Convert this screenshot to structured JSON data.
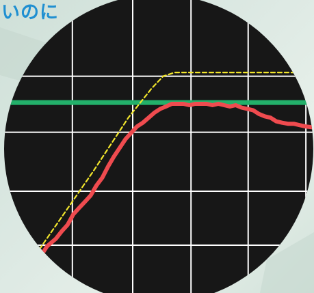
{
  "caption": "いのに",
  "colors": {
    "background": "#d8e6df",
    "panel": "#171717",
    "grid": "#ffffff",
    "caption": "#1f8fd1"
  },
  "chart_data": {
    "type": "line",
    "xlim": [
      0,
      100
    ],
    "ylim": [
      0,
      100
    ],
    "grid": true,
    "x_gridlines": [
      16.7,
      37.5,
      57.6,
      77.3,
      97.2
    ],
    "y_gridlines": [
      18.0,
      38.3,
      60.5,
      81.6
    ],
    "series": [
      {
        "role": "measured",
        "color": "#ef4b4f",
        "style": "solid",
        "points": [
          [
            0,
            8.7
          ],
          [
            3,
            11.5
          ],
          [
            6,
            14.3
          ],
          [
            8,
            17.6
          ],
          [
            11,
            20.4
          ],
          [
            13,
            23.2
          ],
          [
            15,
            25.6
          ],
          [
            17,
            29.6
          ],
          [
            19,
            32.0
          ],
          [
            21,
            34.3
          ],
          [
            23,
            36.7
          ],
          [
            25,
            40.5
          ],
          [
            27,
            43.4
          ],
          [
            29,
            47.6
          ],
          [
            31,
            51.3
          ],
          [
            33,
            54.6
          ],
          [
            35,
            57.9
          ],
          [
            37,
            60.3
          ],
          [
            39,
            62.7
          ],
          [
            41,
            64.1
          ],
          [
            43,
            66.0
          ],
          [
            45,
            67.9
          ],
          [
            47,
            69.3
          ],
          [
            49,
            70.2
          ],
          [
            51,
            71.2
          ],
          [
            53,
            71.2
          ],
          [
            55,
            71.2
          ],
          [
            57,
            70.7
          ],
          [
            59,
            71.2
          ],
          [
            61,
            71.2
          ],
          [
            63,
            71.2
          ],
          [
            65,
            70.7
          ],
          [
            67,
            71.2
          ],
          [
            69,
            70.7
          ],
          [
            71,
            70.2
          ],
          [
            73,
            70.7
          ],
          [
            75,
            69.8
          ],
          [
            77,
            69.3
          ],
          [
            79,
            68.8
          ],
          [
            81,
            67.4
          ],
          [
            83,
            66.5
          ],
          [
            85,
            66.0
          ],
          [
            87,
            64.6
          ],
          [
            89,
            64.1
          ],
          [
            91,
            63.7
          ],
          [
            93,
            63.7
          ],
          [
            95,
            63.2
          ],
          [
            97,
            62.7
          ],
          [
            100,
            62.3
          ]
        ]
      },
      {
        "role": "target",
        "color": "#f2e62c",
        "style": "dashed",
        "points": [
          [
            0,
            8.0
          ],
          [
            12,
            27.0
          ],
          [
            24,
            46.0
          ],
          [
            36,
            66.0
          ],
          [
            44,
            77.0
          ],
          [
            48,
            81.6
          ],
          [
            52,
            83.0
          ],
          [
            100,
            83.0
          ]
        ]
      },
      {
        "role": "threshold",
        "color": "#23b06a",
        "style": "solid",
        "points": [
          [
            0,
            71.7
          ],
          [
            100,
            71.7
          ]
        ]
      }
    ]
  }
}
